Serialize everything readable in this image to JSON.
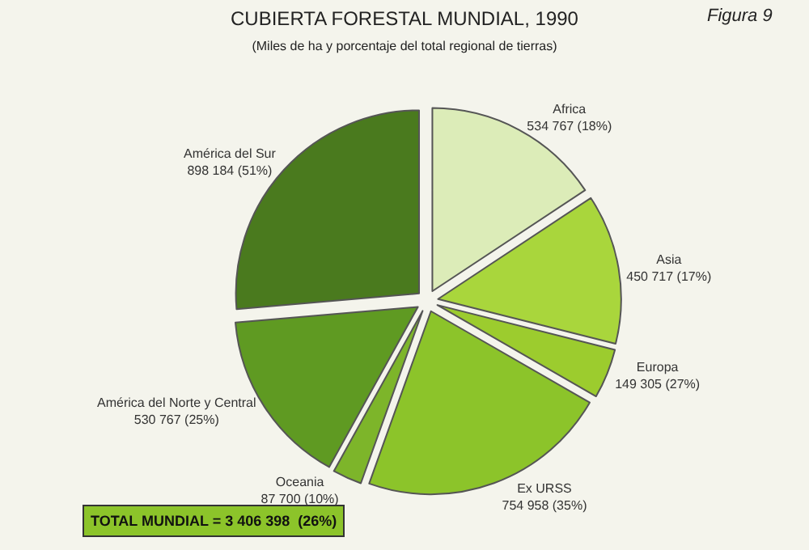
{
  "chart_data": {
    "type": "pie",
    "title": "CUBIERTA FORESTAL MUNDIAL, 1990",
    "subtitle": "(Miles de ha y porcentaje del total regional de tierras)",
    "categories": [
      "Africa",
      "Asia",
      "Europa",
      "Ex URSS",
      "Oceania",
      "América del Norte y Central",
      "América del Sur"
    ],
    "values": [
      534767,
      450717,
      149305,
      754958,
      87700,
      530767,
      898184
    ],
    "value_labels": [
      "534 767 (18%)",
      "450 717 (17%)",
      "149 305 (27%)",
      "754 958 (35%)",
      "87 700 (10%)",
      "530 767 (25%)",
      "898 184 (51%)"
    ],
    "colors": [
      "#dcecb8",
      "#a9d63c",
      "#9ccc2e",
      "#8cc42a",
      "#7db52a",
      "#5f9a22",
      "#4a7a1e"
    ],
    "annotations": [
      "Figura 9",
      "TOTAL MUNDIAL = 3 406 398  (26%)"
    ],
    "legend": false
  }
}
